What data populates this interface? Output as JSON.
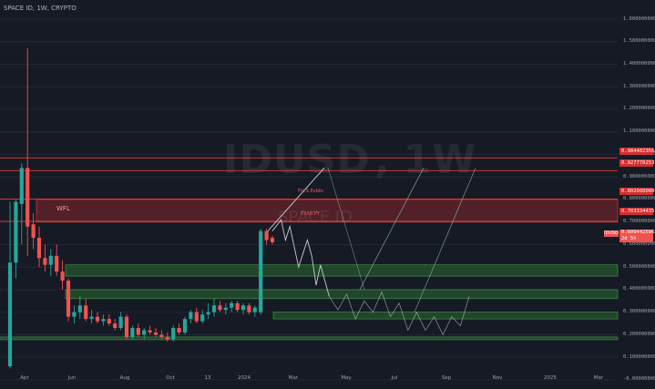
{
  "header": {
    "title": "SPACE ID, 1W, CRYPTO"
  },
  "watermark": {
    "symbol": "IDUSD",
    "interval": "1W",
    "name": "SPACE ID"
  },
  "annotations": {
    "left_label": "WFL",
    "top_label": "FIL.S.Public",
    "mid_label": "T3/ID.PY"
  },
  "colors": {
    "background": "#161a25",
    "bull": "#26a69a",
    "bear": "#ef5350",
    "resistance_zone": "#d32f2f",
    "support_zone": "#2e7d32",
    "projection": "#c9ccd3",
    "projection_alt": "#7fb59a"
  },
  "y_axis": {
    "labels": [
      "1.6000000000",
      "1.5000000000",
      "1.4000000000",
      "1.3000000000",
      "1.2000000000",
      "1.1000000000",
      "1.0000000000",
      "0.9000000000",
      "0.8000000000",
      "0.7000000000",
      "0.6000000000",
      "0.5000000000",
      "0.4000000000",
      "0.3000000000",
      "0.2000000000",
      "0.1000000000",
      "-0.0000000000"
    ]
  },
  "price_tags": {
    "r1": "0.9844023568",
    "r2": "0.9277702537",
    "r3": "0.8020000000",
    "r4": "0.7033344351",
    "current": "0.6094425962",
    "countdown": "2d 5h"
  },
  "x_axis": {
    "labels": [
      "Apr",
      "Jun",
      "Aug",
      "Oct",
      "13",
      "2024",
      "Mar",
      "May",
      "Jul",
      "Sep",
      "Nov",
      "2025",
      "Mar"
    ]
  },
  "chart_data": {
    "type": "candlestick",
    "title": "SPACE ID, 1W, CRYPTO",
    "symbol": "IDUSD",
    "interval": "1W",
    "ylim": [
      -0.05,
      1.65
    ],
    "candles": [
      {
        "o": 0.06,
        "h": 0.79,
        "l": 0.05,
        "c": 0.52
      },
      {
        "o": 0.52,
        "h": 0.8,
        "l": 0.45,
        "c": 0.79
      },
      {
        "o": 0.78,
        "h": 0.96,
        "l": 0.6,
        "c": 0.94
      },
      {
        "o": 0.94,
        "h": 1.47,
        "l": 0.55,
        "c": 0.68
      },
      {
        "o": 0.69,
        "h": 0.74,
        "l": 0.58,
        "c": 0.63
      },
      {
        "o": 0.63,
        "h": 0.68,
        "l": 0.5,
        "c": 0.54
      },
      {
        "o": 0.54,
        "h": 0.6,
        "l": 0.48,
        "c": 0.51
      },
      {
        "o": 0.51,
        "h": 0.58,
        "l": 0.46,
        "c": 0.55
      },
      {
        "o": 0.55,
        "h": 0.6,
        "l": 0.46,
        "c": 0.48
      },
      {
        "o": 0.48,
        "h": 0.53,
        "l": 0.4,
        "c": 0.44
      },
      {
        "o": 0.44,
        "h": 0.45,
        "l": 0.26,
        "c": 0.28
      },
      {
        "o": 0.28,
        "h": 0.33,
        "l": 0.25,
        "c": 0.3
      },
      {
        "o": 0.3,
        "h": 0.37,
        "l": 0.27,
        "c": 0.33
      },
      {
        "o": 0.33,
        "h": 0.36,
        "l": 0.26,
        "c": 0.27
      },
      {
        "o": 0.27,
        "h": 0.31,
        "l": 0.25,
        "c": 0.28
      },
      {
        "o": 0.28,
        "h": 0.3,
        "l": 0.25,
        "c": 0.26
      },
      {
        "o": 0.26,
        "h": 0.29,
        "l": 0.24,
        "c": 0.27
      },
      {
        "o": 0.27,
        "h": 0.29,
        "l": 0.24,
        "c": 0.25
      },
      {
        "o": 0.25,
        "h": 0.27,
        "l": 0.22,
        "c": 0.23
      },
      {
        "o": 0.23,
        "h": 0.3,
        "l": 0.22,
        "c": 0.28
      },
      {
        "o": 0.28,
        "h": 0.29,
        "l": 0.18,
        "c": 0.19
      },
      {
        "o": 0.19,
        "h": 0.24,
        "l": 0.18,
        "c": 0.23
      },
      {
        "o": 0.23,
        "h": 0.25,
        "l": 0.19,
        "c": 0.2
      },
      {
        "o": 0.2,
        "h": 0.23,
        "l": 0.18,
        "c": 0.22
      },
      {
        "o": 0.22,
        "h": 0.24,
        "l": 0.2,
        "c": 0.21
      },
      {
        "o": 0.21,
        "h": 0.23,
        "l": 0.19,
        "c": 0.2
      },
      {
        "o": 0.2,
        "h": 0.22,
        "l": 0.18,
        "c": 0.19
      },
      {
        "o": 0.19,
        "h": 0.21,
        "l": 0.17,
        "c": 0.18
      },
      {
        "o": 0.18,
        "h": 0.24,
        "l": 0.17,
        "c": 0.23
      },
      {
        "o": 0.23,
        "h": 0.25,
        "l": 0.2,
        "c": 0.21
      },
      {
        "o": 0.21,
        "h": 0.28,
        "l": 0.2,
        "c": 0.27
      },
      {
        "o": 0.27,
        "h": 0.31,
        "l": 0.25,
        "c": 0.3
      },
      {
        "o": 0.3,
        "h": 0.32,
        "l": 0.25,
        "c": 0.26
      },
      {
        "o": 0.26,
        "h": 0.31,
        "l": 0.25,
        "c": 0.29
      },
      {
        "o": 0.29,
        "h": 0.34,
        "l": 0.27,
        "c": 0.3
      },
      {
        "o": 0.3,
        "h": 0.36,
        "l": 0.28,
        "c": 0.33
      },
      {
        "o": 0.33,
        "h": 0.35,
        "l": 0.3,
        "c": 0.31
      },
      {
        "o": 0.31,
        "h": 0.34,
        "l": 0.29,
        "c": 0.32
      },
      {
        "o": 0.32,
        "h": 0.35,
        "l": 0.3,
        "c": 0.34
      },
      {
        "o": 0.34,
        "h": 0.35,
        "l": 0.3,
        "c": 0.31
      },
      {
        "o": 0.31,
        "h": 0.34,
        "l": 0.29,
        "c": 0.33
      },
      {
        "o": 0.33,
        "h": 0.34,
        "l": 0.29,
        "c": 0.3
      },
      {
        "o": 0.3,
        "h": 0.33,
        "l": 0.28,
        "c": 0.32
      },
      {
        "o": 0.3,
        "h": 0.67,
        "l": 0.29,
        "c": 0.66
      },
      {
        "o": 0.66,
        "h": 0.67,
        "l": 0.6,
        "c": 0.62
      },
      {
        "o": 0.63,
        "h": 0.64,
        "l": 0.6,
        "c": 0.61
      }
    ],
    "zones": {
      "resistance": [
        [
          0.7,
          0.8
        ]
      ],
      "support": [
        [
          0.46,
          0.51
        ],
        [
          0.36,
          0.4
        ],
        [
          0.27,
          0.3
        ],
        [
          0.18,
          0.19
        ]
      ]
    },
    "levels": [
      0.9844,
      0.9278,
      0.802,
      0.7033
    ],
    "projection_path": [
      [
        0,
        0.66
      ],
      [
        2,
        0.71
      ],
      [
        3,
        0.62
      ],
      [
        4,
        0.68
      ],
      [
        6,
        0.5
      ],
      [
        8,
        0.62
      ],
      [
        9,
        0.55
      ],
      [
        10,
        0.42
      ],
      [
        11,
        0.51
      ],
      [
        13,
        0.37
      ]
    ],
    "projection_alt_path": [
      [
        13,
        0.37
      ],
      [
        15,
        0.31
      ],
      [
        17,
        0.38
      ],
      [
        19,
        0.27
      ],
      [
        21,
        0.35
      ],
      [
        23,
        0.3
      ],
      [
        25,
        0.39
      ],
      [
        27,
        0.28
      ],
      [
        29,
        0.34
      ],
      [
        31,
        0.22
      ],
      [
        33,
        0.3
      ],
      [
        35,
        0.22
      ],
      [
        37,
        0.28
      ],
      [
        39,
        0.2
      ],
      [
        41,
        0.28
      ],
      [
        43,
        0.24
      ],
      [
        45,
        0.37
      ]
    ]
  }
}
